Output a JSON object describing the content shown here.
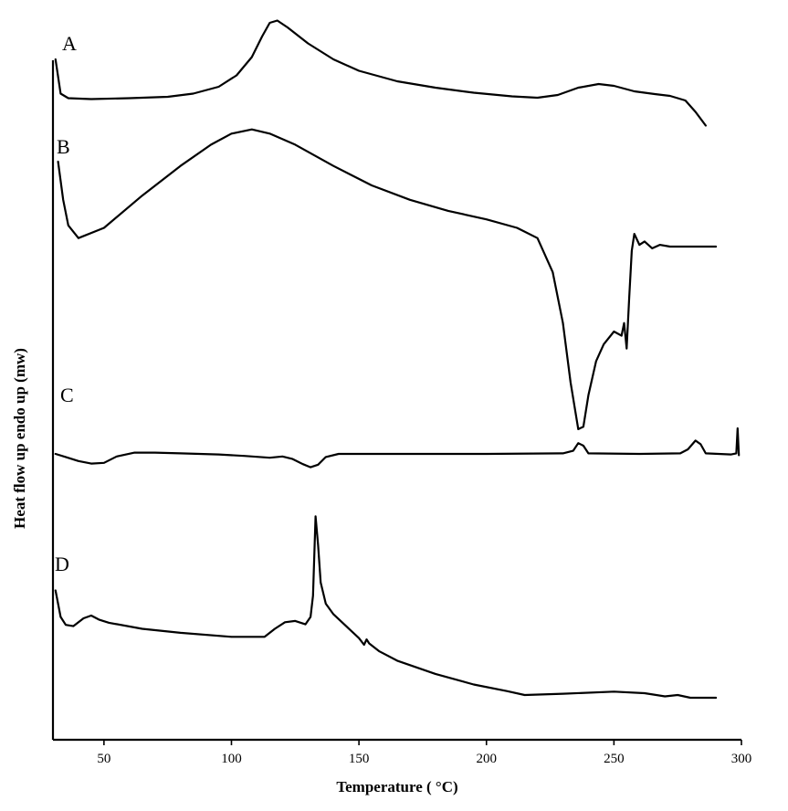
{
  "chart_data": {
    "type": "line",
    "xlabel": "Temperature ( °C)",
    "ylabel": "Heat flow up endo up (mw)",
    "xlim": [
      30,
      300
    ],
    "x_ticks": [
      50,
      100,
      150,
      200,
      250,
      300
    ],
    "y_ticks_shown": false,
    "grid": false,
    "legend": "none",
    "line_color": "#000000",
    "series": [
      {
        "name": "A",
        "points": [
          [
            31,
            0.9
          ],
          [
            33,
            0.15
          ],
          [
            36,
            0.05
          ],
          [
            45,
            0.03
          ],
          [
            60,
            0.05
          ],
          [
            75,
            0.08
          ],
          [
            85,
            0.15
          ],
          [
            95,
            0.3
          ],
          [
            102,
            0.55
          ],
          [
            108,
            0.95
          ],
          [
            112,
            1.4
          ],
          [
            115,
            1.7
          ],
          [
            118,
            1.75
          ],
          [
            122,
            1.6
          ],
          [
            130,
            1.25
          ],
          [
            140,
            0.9
          ],
          [
            150,
            0.65
          ],
          [
            165,
            0.42
          ],
          [
            180,
            0.28
          ],
          [
            195,
            0.17
          ],
          [
            210,
            0.09
          ],
          [
            220,
            0.06
          ],
          [
            228,
            0.12
          ],
          [
            236,
            0.28
          ],
          [
            244,
            0.36
          ],
          [
            250,
            0.32
          ],
          [
            258,
            0.2
          ],
          [
            266,
            0.14
          ],
          [
            272,
            0.1
          ],
          [
            278,
            0.0
          ],
          [
            282,
            -0.25
          ],
          [
            286,
            -0.55
          ]
        ]
      },
      {
        "name": "B",
        "points": [
          [
            32,
            1.0
          ],
          [
            34,
            0.55
          ],
          [
            36,
            0.25
          ],
          [
            40,
            0.1
          ],
          [
            50,
            0.22
          ],
          [
            65,
            0.6
          ],
          [
            80,
            0.95
          ],
          [
            92,
            1.2
          ],
          [
            100,
            1.33
          ],
          [
            108,
            1.38
          ],
          [
            115,
            1.33
          ],
          [
            125,
            1.2
          ],
          [
            140,
            0.95
          ],
          [
            155,
            0.72
          ],
          [
            170,
            0.55
          ],
          [
            185,
            0.42
          ],
          [
            200,
            0.32
          ],
          [
            212,
            0.22
          ],
          [
            220,
            0.1
          ],
          [
            226,
            -0.3
          ],
          [
            230,
            -0.9
          ],
          [
            233,
            -1.6
          ],
          [
            236,
            -2.15
          ],
          [
            238,
            -2.12
          ],
          [
            240,
            -1.75
          ],
          [
            243,
            -1.35
          ],
          [
            246,
            -1.15
          ],
          [
            250,
            -1.0
          ],
          [
            253,
            -1.05
          ],
          [
            254,
            -0.9
          ],
          [
            255,
            -1.2
          ],
          [
            256,
            -0.6
          ],
          [
            257,
            -0.05
          ],
          [
            258,
            0.15
          ],
          [
            260,
            0.02
          ],
          [
            262,
            0.06
          ],
          [
            265,
            -0.02
          ],
          [
            268,
            0.02
          ],
          [
            272,
            0.0
          ],
          [
            280,
            0.0
          ],
          [
            290,
            0.0
          ]
        ]
      },
      {
        "name": "C",
        "points": [
          [
            31,
            0.0
          ],
          [
            35,
            -0.12
          ],
          [
            40,
            -0.28
          ],
          [
            45,
            -0.38
          ],
          [
            50,
            -0.35
          ],
          [
            55,
            -0.1
          ],
          [
            62,
            0.05
          ],
          [
            70,
            0.05
          ],
          [
            80,
            0.02
          ],
          [
            95,
            -0.02
          ],
          [
            105,
            -0.08
          ],
          [
            115,
            -0.15
          ],
          [
            120,
            -0.1
          ],
          [
            124,
            -0.2
          ],
          [
            128,
            -0.4
          ],
          [
            131,
            -0.52
          ],
          [
            134,
            -0.42
          ],
          [
            137,
            -0.12
          ],
          [
            142,
            0.0
          ],
          [
            160,
            0.0
          ],
          [
            200,
            0.0
          ],
          [
            230,
            0.02
          ],
          [
            234,
            0.12
          ],
          [
            236,
            0.42
          ],
          [
            238,
            0.32
          ],
          [
            240,
            0.02
          ],
          [
            260,
            0.0
          ],
          [
            276,
            0.02
          ],
          [
            279,
            0.18
          ],
          [
            282,
            0.52
          ],
          [
            284,
            0.38
          ],
          [
            286,
            0.02
          ],
          [
            296,
            -0.02
          ],
          [
            298,
            0.02
          ],
          [
            298.5,
            1.0
          ],
          [
            299,
            -0.05
          ]
        ]
      },
      {
        "name": "D",
        "points": [
          [
            31,
            1.5
          ],
          [
            33,
            0.5
          ],
          [
            35,
            0.2
          ],
          [
            38,
            0.15
          ],
          [
            42,
            0.45
          ],
          [
            45,
            0.55
          ],
          [
            48,
            0.4
          ],
          [
            52,
            0.28
          ],
          [
            65,
            0.05
          ],
          [
            80,
            -0.1
          ],
          [
            100,
            -0.25
          ],
          [
            113,
            -0.25
          ],
          [
            117,
            0.05
          ],
          [
            121,
            0.3
          ],
          [
            125,
            0.35
          ],
          [
            129,
            0.22
          ],
          [
            131,
            0.5
          ],
          [
            132,
            1.3
          ],
          [
            133,
            4.3
          ],
          [
            134,
            3.2
          ],
          [
            135,
            1.8
          ],
          [
            137,
            1.0
          ],
          [
            140,
            0.6
          ],
          [
            145,
            0.15
          ],
          [
            150,
            -0.3
          ],
          [
            152,
            -0.55
          ],
          [
            153,
            -0.35
          ],
          [
            154,
            -0.5
          ],
          [
            158,
            -0.8
          ],
          [
            165,
            -1.15
          ],
          [
            180,
            -1.65
          ],
          [
            195,
            -2.05
          ],
          [
            208,
            -2.3
          ],
          [
            215,
            -2.45
          ],
          [
            230,
            -2.4
          ],
          [
            250,
            -2.32
          ],
          [
            262,
            -2.38
          ],
          [
            270,
            -2.5
          ],
          [
            275,
            -2.45
          ],
          [
            280,
            -2.55
          ],
          [
            290,
            -2.55
          ]
        ]
      }
    ]
  }
}
